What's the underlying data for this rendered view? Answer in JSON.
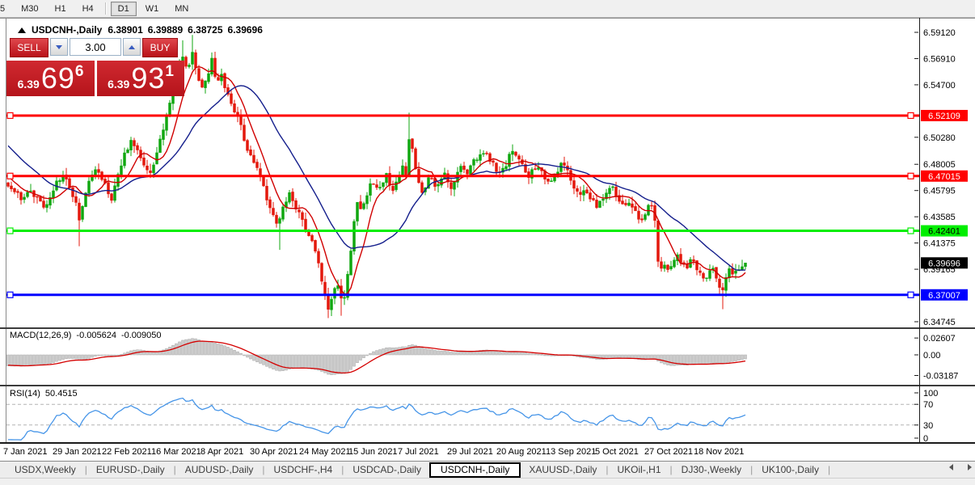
{
  "toolbar": {
    "timeframes": [
      "5",
      "M30",
      "H1",
      "H4",
      "D1",
      "W1",
      "MN"
    ],
    "active": "D1"
  },
  "title": {
    "symbol": "USDCNH-,Daily",
    "open": "6.38901",
    "high": "6.39889",
    "low": "6.38725",
    "close": "6.39696"
  },
  "trade": {
    "sell_label": "SELL",
    "buy_label": "BUY",
    "volume": "3.00",
    "sell_price": {
      "prefix": "6.39",
      "big": "69",
      "sup": "6"
    },
    "buy_price": {
      "prefix": "6.39",
      "big": "93",
      "sup": "1"
    }
  },
  "chart_data": {
    "type": "candlestick",
    "symbol": "USDCNH-, Daily",
    "colors": {
      "bull": "#10a710",
      "bear": "#e3180d",
      "ma_fast": "#d00000",
      "ma_slow": "#141e8c",
      "macd_histogram": "#cccccc",
      "macd_histogram_edge": "#a8a8a8",
      "macd_signal": "#d40000",
      "rsi_line": "#4695e8"
    },
    "y_ticks": [
      {
        "label": "6.59120",
        "price": 6.5912
      },
      {
        "label": "6.56910",
        "price": 6.5691
      },
      {
        "label": "6.54700",
        "price": 6.547
      },
      {
        "label": "6.50280",
        "price": 6.5028
      },
      {
        "label": "6.48005",
        "price": 6.48005
      },
      {
        "label": "6.45795",
        "price": 6.45795
      },
      {
        "label": "6.43585",
        "price": 6.43585
      },
      {
        "label": "6.41375",
        "price": 6.41375
      },
      {
        "label": "6.39165",
        "price": 6.39165
      },
      {
        "label": "6.34745",
        "price": 6.34745
      }
    ],
    "levels": [
      {
        "price": 6.52109,
        "label": "6.52109",
        "color": "#ff0000",
        "text_color": "#ffffff"
      },
      {
        "price": 6.47015,
        "label": "6.47015",
        "color": "#ff0000",
        "text_color": "#ffffff"
      },
      {
        "price": 6.42401,
        "label": "6.42401",
        "color": "#00ee00",
        "text_color": "#000000"
      },
      {
        "price": 6.37007,
        "label": "6.37007",
        "color": "#0000ff",
        "text_color": "#ffffff"
      }
    ],
    "current_price": {
      "label": "6.39696",
      "price": 6.39696,
      "bg": "#000000",
      "text_color": "#ffffff"
    },
    "x_dates": [
      "7 Jan 2021",
      "29 Jan 2021",
      "22 Feb 2021",
      "16 Mar 2021",
      "8 Apr 2021",
      "30 Apr 2021",
      "24 May 2021",
      "15 Jun 2021",
      "7 Jul 2021",
      "29 Jul 2021",
      "20 Aug 2021",
      "13 Sep 2021",
      "5 Oct 2021",
      "27 Oct 2021",
      "18 Nov 2021"
    ],
    "price_path": [
      [
        -170,
        6.56
      ],
      [
        -120,
        6.545
      ],
      [
        -80,
        6.525
      ],
      [
        -40,
        6.5
      ],
      [
        -15,
        6.478
      ],
      [
        10,
        6.461
      ],
      [
        25,
        6.452
      ],
      [
        40,
        6.456
      ],
      [
        57,
        6.442
      ],
      [
        70,
        6.465
      ],
      [
        80,
        6.47
      ],
      [
        92,
        6.452
      ],
      [
        98,
        6.434
      ],
      [
        108,
        6.462
      ],
      [
        118,
        6.476
      ],
      [
        128,
        6.465
      ],
      [
        138,
        6.452
      ],
      [
        146,
        6.472
      ],
      [
        154,
        6.488
      ],
      [
        162,
        6.498
      ],
      [
        170,
        6.493
      ],
      [
        178,
        6.481
      ],
      [
        186,
        6.471
      ],
      [
        194,
        6.49
      ],
      [
        202,
        6.511
      ],
      [
        210,
        6.531
      ],
      [
        218,
        6.552
      ],
      [
        226,
        6.571
      ],
      [
        232,
        6.56
      ],
      [
        238,
        6.573
      ],
      [
        244,
        6.555
      ],
      [
        250,
        6.543
      ],
      [
        256,
        6.552
      ],
      [
        262,
        6.568
      ],
      [
        268,
        6.548
      ],
      [
        274,
        6.556
      ],
      [
        280,
        6.54
      ],
      [
        288,
        6.526
      ],
      [
        296,
        6.518
      ],
      [
        304,
        6.496
      ],
      [
        312,
        6.486
      ],
      [
        318,
        6.478
      ],
      [
        326,
        6.462
      ],
      [
        334,
        6.441
      ],
      [
        342,
        6.429
      ],
      [
        350,
        6.443
      ],
      [
        357,
        6.456
      ],
      [
        364,
        6.447
      ],
      [
        372,
        6.435
      ],
      [
        380,
        6.423
      ],
      [
        388,
        6.41
      ],
      [
        394,
        6.398
      ],
      [
        400,
        6.376
      ],
      [
        406,
        6.356
      ],
      [
        412,
        6.37
      ],
      [
        418,
        6.38
      ],
      [
        424,
        6.363
      ],
      [
        430,
        6.385
      ],
      [
        436,
        6.421
      ],
      [
        442,
        6.447
      ],
      [
        448,
        6.441
      ],
      [
        454,
        6.455
      ],
      [
        460,
        6.468
      ],
      [
        466,
        6.458
      ],
      [
        472,
        6.464
      ],
      [
        478,
        6.472
      ],
      [
        484,
        6.458
      ],
      [
        490,
        6.463
      ],
      [
        497,
        6.478
      ],
      [
        503,
        6.468
      ],
      [
        507,
        6.51
      ],
      [
        511,
        6.488
      ],
      [
        516,
        6.468
      ],
      [
        521,
        6.455
      ],
      [
        527,
        6.464
      ],
      [
        533,
        6.471
      ],
      [
        539,
        6.462
      ],
      [
        545,
        6.468
      ],
      [
        551,
        6.471
      ],
      [
        557,
        6.455
      ],
      [
        563,
        6.469
      ],
      [
        570,
        6.48
      ],
      [
        577,
        6.473
      ],
      [
        584,
        6.481
      ],
      [
        591,
        6.485
      ],
      [
        598,
        6.491
      ],
      [
        605,
        6.486
      ],
      [
        612,
        6.478
      ],
      [
        619,
        6.472
      ],
      [
        626,
        6.48
      ],
      [
        633,
        6.492
      ],
      [
        640,
        6.484
      ],
      [
        647,
        6.478
      ],
      [
        653,
        6.47
      ],
      [
        660,
        6.475
      ],
      [
        667,
        6.479
      ],
      [
        674,
        6.47
      ],
      [
        681,
        6.463
      ],
      [
        688,
        6.472
      ],
      [
        695,
        6.482
      ],
      [
        702,
        6.475
      ],
      [
        709,
        6.463
      ],
      [
        716,
        6.452
      ],
      [
        723,
        6.459
      ],
      [
        730,
        6.453
      ],
      [
        737,
        6.445
      ],
      [
        744,
        6.448
      ],
      [
        751,
        6.456
      ],
      [
        757,
        6.463
      ],
      [
        764,
        6.452
      ],
      [
        771,
        6.444
      ],
      [
        778,
        6.449
      ],
      [
        785,
        6.44
      ],
      [
        792,
        6.432
      ],
      [
        799,
        6.441
      ],
      [
        806,
        6.446
      ],
      [
        811,
        6.43
      ],
      [
        815,
        6.388
      ],
      [
        819,
        6.392
      ],
      [
        823,
        6.399
      ],
      [
        827,
        6.387
      ],
      [
        831,
        6.397
      ],
      [
        836,
        6.404
      ],
      [
        841,
        6.4
      ],
      [
        846,
        6.397
      ],
      [
        851,
        6.394
      ],
      [
        856,
        6.4
      ],
      [
        861,
        6.393
      ],
      [
        866,
        6.388
      ],
      [
        871,
        6.383
      ],
      [
        876,
        6.388
      ],
      [
        881,
        6.392
      ],
      [
        886,
        6.384
      ],
      [
        890,
        6.377
      ],
      [
        894,
        6.373
      ],
      [
        898,
        6.384
      ],
      [
        902,
        6.391
      ],
      [
        906,
        6.387
      ],
      [
        910,
        6.392
      ],
      [
        914,
        6.389
      ],
      [
        918,
        6.394
      ],
      [
        922,
        6.397
      ]
    ],
    "wick_events": [
      [
        98,
        "low",
        6.411
      ],
      [
        226,
        "high",
        6.5845
      ],
      [
        238,
        "high",
        6.589
      ],
      [
        264,
        "high",
        6.5725
      ],
      [
        344,
        "low",
        6.408
      ],
      [
        406,
        "low",
        6.3505
      ],
      [
        422,
        "low",
        6.3525
      ],
      [
        507,
        "high",
        6.5235
      ],
      [
        894,
        "low",
        6.358
      ]
    ],
    "macd": {
      "name": "MACD(12,26,9)",
      "main_value": "-0.005624",
      "signal_value": "-0.009050",
      "params": [
        12,
        26,
        9
      ],
      "ticks": [
        {
          "label": "0.02607",
          "value": 0.02607
        },
        {
          "label": "0.00",
          "value": 0
        },
        {
          "label": "-0.03187",
          "value": -0.03187
        }
      ]
    },
    "rsi": {
      "name": "RSI(14)",
      "value": "50.4515",
      "period": 14,
      "ticks": [
        {
          "label": "100",
          "value": 100
        },
        {
          "label": "70",
          "value": 70
        },
        {
          "label": "30",
          "value": 30
        },
        {
          "label": "0",
          "value": 0
        }
      ],
      "dashed_levels": [
        70,
        30
      ]
    }
  },
  "tabs": {
    "items": [
      "USDX,Weekly",
      "EURUSD-,Daily",
      "AUDUSD-,Daily",
      "USDCHF-,H4",
      "USDCAD-,Daily",
      "USDCNH-,Daily",
      "XAUUSD-,Daily",
      "UKOil-,H1",
      "DJ30-,Weekly",
      "UK100-,Daily"
    ],
    "active": "USDCNH-,Daily"
  }
}
